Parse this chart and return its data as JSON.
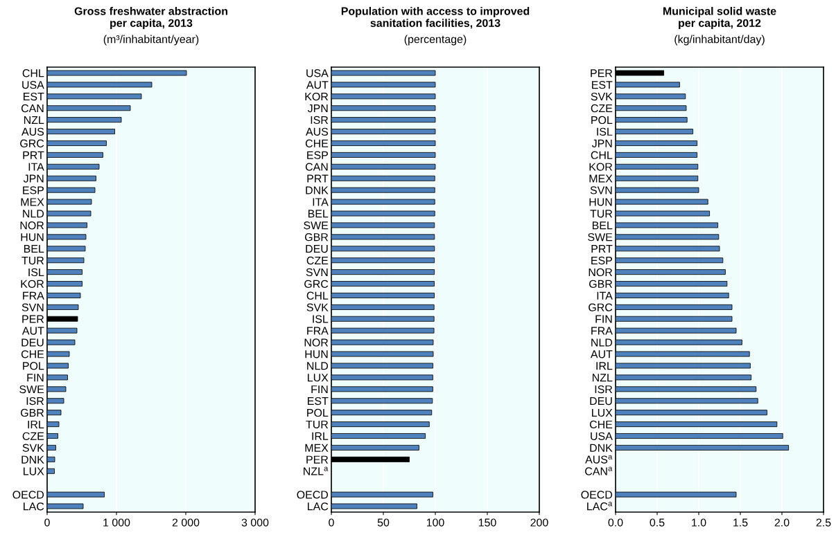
{
  "chart_data": [
    {
      "type": "bar",
      "orientation": "horizontal",
      "title": "Gross freshwater abstraction\nper capita, 2013",
      "subtitle": "(m³/inhabitant/year)",
      "categories": [
        "CHL",
        "USA",
        "EST",
        "CAN",
        "NZL",
        "AUS",
        "GRC",
        "PRT",
        "ITA",
        "JPN",
        "ESP",
        "MEX",
        "NLD",
        "NOR",
        "HUN",
        "BEL",
        "TUR",
        "ISL",
        "KOR",
        "FRA",
        "SVN",
        "PER",
        "AUT",
        "DEU",
        "CHE",
        "POL",
        "FIN",
        "SWE",
        "ISR",
        "GBR",
        "IRL",
        "CZE",
        "SVK",
        "DNK",
        "LUX",
        null,
        "OECD",
        "LAC"
      ],
      "values": [
        2010,
        1510,
        1360,
        1200,
        1070,
        975,
        855,
        805,
        750,
        705,
        690,
        640,
        630,
        575,
        560,
        550,
        530,
        505,
        505,
        480,
        450,
        440,
        430,
        400,
        320,
        305,
        295,
        270,
        240,
        200,
        170,
        155,
        125,
        110,
        105,
        null,
        825,
        520
      ],
      "colors": [
        "#4f81bd",
        "#4f81bd",
        "#4f81bd",
        "#4f81bd",
        "#4f81bd",
        "#4f81bd",
        "#4f81bd",
        "#4f81bd",
        "#4f81bd",
        "#4f81bd",
        "#4f81bd",
        "#4f81bd",
        "#4f81bd",
        "#4f81bd",
        "#4f81bd",
        "#4f81bd",
        "#4f81bd",
        "#4f81bd",
        "#4f81bd",
        "#4f81bd",
        "#4f81bd",
        "#000000",
        "#4f81bd",
        "#4f81bd",
        "#4f81bd",
        "#4f81bd",
        "#4f81bd",
        "#4f81bd",
        "#4f81bd",
        "#4f81bd",
        "#4f81bd",
        "#4f81bd",
        "#4f81bd",
        "#4f81bd",
        "#4f81bd",
        "#4f81bd",
        "#4f81bd",
        "#4f81bd"
      ],
      "xlim": [
        0,
        3000
      ],
      "xticks": [
        0,
        {
          "value": 1000,
          "label": "1 000"
        },
        {
          "value": 2000,
          "label": "2 000"
        },
        {
          "value": 3000,
          "label": "3 000"
        }
      ],
      "grid": "x"
    },
    {
      "type": "bar",
      "orientation": "horizontal",
      "title": "Population with access to improved\nsanitation facilities, 2013",
      "subtitle": "(percentage)",
      "categories": [
        "USA",
        "AUT",
        "KOR",
        "JPN",
        "ISR",
        "AUS",
        "CHE",
        "ESP",
        "CAN",
        "PRT",
        "DNK",
        "ITA",
        "BEL",
        "SWE",
        "GBR",
        "DEU",
        "CZE",
        "SVN",
        "GRC",
        "CHL",
        "SVK",
        "ISL",
        "FRA",
        "NOR",
        "HUN",
        "NLD",
        "LUX",
        "FIN",
        "EST",
        "POL",
        "TUR",
        "IRL",
        "MEX",
        "PER",
        "NZL$^{a}$",
        null,
        "OECD",
        "LAC"
      ],
      "values": [
        100,
        100,
        100,
        100,
        100,
        100,
        100,
        100,
        100,
        99.5,
        99.5,
        99.5,
        99.5,
        99.2,
        99.2,
        99.2,
        99.1,
        99.1,
        99,
        99,
        98.8,
        98.8,
        98.7,
        98,
        98,
        97.7,
        97.6,
        97.6,
        97.2,
        96.5,
        94.2,
        90.4,
        84.3,
        75,
        null,
        null,
        97.7,
        82.3
      ],
      "colors": [
        "#4f81bd",
        "#4f81bd",
        "#4f81bd",
        "#4f81bd",
        "#4f81bd",
        "#4f81bd",
        "#4f81bd",
        "#4f81bd",
        "#4f81bd",
        "#4f81bd",
        "#4f81bd",
        "#4f81bd",
        "#4f81bd",
        "#4f81bd",
        "#4f81bd",
        "#4f81bd",
        "#4f81bd",
        "#4f81bd",
        "#4f81bd",
        "#4f81bd",
        "#4f81bd",
        "#4f81bd",
        "#4f81bd",
        "#4f81bd",
        "#4f81bd",
        "#4f81bd",
        "#4f81bd",
        "#4f81bd",
        "#4f81bd",
        "#4f81bd",
        "#4f81bd",
        "#4f81bd",
        "#4f81bd",
        "#000000",
        "#4f81bd",
        "#4f81bd",
        "#4f81bd",
        "#4f81bd"
      ],
      "xlim": [
        0,
        200
      ],
      "xticks": [
        0,
        50,
        100,
        150,
        200
      ],
      "grid": "x"
    },
    {
      "type": "bar",
      "orientation": "horizontal",
      "title": "Municipal solid waste\nper capita, 2012",
      "subtitle": "(kg/inhabitant/day)",
      "categories": [
        "PER",
        "EST",
        "SVK",
        "CZE",
        "POL",
        "ISL",
        "JPN",
        "CHL",
        "KOR",
        "MEX",
        "SVN",
        "HUN",
        "TUR",
        "BEL",
        "SWE",
        "PRT",
        "ESP",
        "NOR",
        "GBR",
        "ITA",
        "GRC",
        "FIN",
        "FRA",
        "NLD",
        "AUT",
        "IRL",
        "NZL",
        "ISR",
        "DEU",
        "LUX",
        "CHE",
        "USA",
        "DNK",
        "AUS$^{a}$",
        "CAN$^{a}$",
        null,
        "OECD",
        "LAC$^{a}$"
      ],
      "values": [
        0.58,
        0.77,
        0.84,
        0.85,
        0.86,
        0.93,
        0.98,
        0.98,
        0.99,
        0.99,
        1.0,
        1.11,
        1.13,
        1.23,
        1.24,
        1.25,
        1.29,
        1.32,
        1.34,
        1.36,
        1.4,
        1.4,
        1.45,
        1.52,
        1.61,
        1.62,
        1.63,
        1.69,
        1.71,
        1.82,
        1.94,
        2.01,
        2.08,
        null,
        null,
        null,
        1.45,
        null
      ],
      "colors": [
        "#000000",
        "#4f81bd",
        "#4f81bd",
        "#4f81bd",
        "#4f81bd",
        "#4f81bd",
        "#4f81bd",
        "#4f81bd",
        "#4f81bd",
        "#4f81bd",
        "#4f81bd",
        "#4f81bd",
        "#4f81bd",
        "#4f81bd",
        "#4f81bd",
        "#4f81bd",
        "#4f81bd",
        "#4f81bd",
        "#4f81bd",
        "#4f81bd",
        "#4f81bd",
        "#4f81bd",
        "#4f81bd",
        "#4f81bd",
        "#4f81bd",
        "#4f81bd",
        "#4f81bd",
        "#4f81bd",
        "#4f81bd",
        "#4f81bd",
        "#4f81bd",
        "#4f81bd",
        "#4f81bd",
        "#4f81bd",
        "#4f81bd",
        "#4f81bd",
        "#4f81bd",
        "#4f81bd"
      ],
      "xlim": [
        0,
        2.5
      ],
      "xticks": [
        {
          "value": 0,
          "label": "0.0"
        },
        0.5,
        {
          "value": 1,
          "label": "1.0"
        },
        1.5,
        {
          "value": 2,
          "label": "2.0"
        },
        2.5
      ],
      "grid": "x"
    }
  ]
}
